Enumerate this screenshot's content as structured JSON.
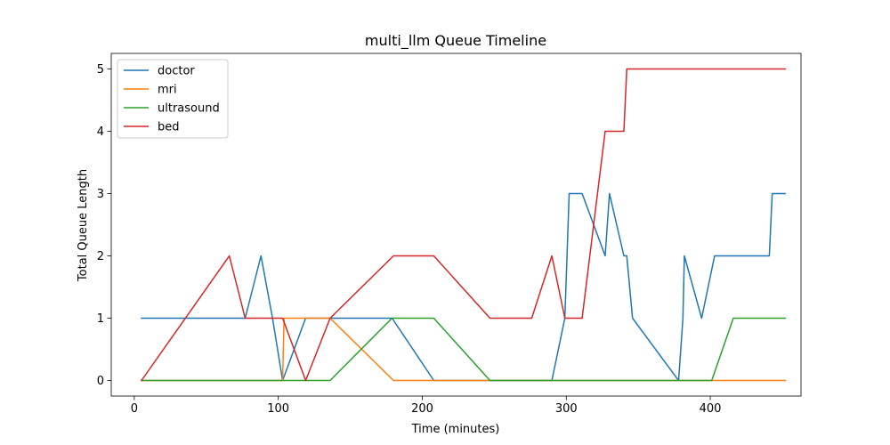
{
  "chart_data": {
    "type": "line",
    "title": "multi_llm Queue Timeline",
    "xlabel": "Time (minutes)",
    "ylabel": "Total Queue Length",
    "xlim": [
      -16,
      463
    ],
    "ylim": [
      -0.25,
      5.25
    ],
    "xticks": [
      0,
      100,
      200,
      300,
      400
    ],
    "yticks": [
      0,
      1,
      2,
      3,
      4,
      5
    ],
    "grid": false,
    "legend_position": "upper left",
    "series": [
      {
        "name": "doctor",
        "color": "#1f77b4",
        "points": [
          [
            5,
            1
          ],
          [
            66,
            1
          ],
          [
            77,
            1
          ],
          [
            88,
            2
          ],
          [
            96,
            1
          ],
          [
            103,
            0
          ],
          [
            119,
            1
          ],
          [
            136,
            1
          ],
          [
            179,
            1
          ],
          [
            208,
            0
          ],
          [
            247,
            0
          ],
          [
            290,
            0
          ],
          [
            299,
            1
          ],
          [
            302,
            3
          ],
          [
            311,
            3
          ],
          [
            327,
            2
          ],
          [
            330,
            3
          ],
          [
            340,
            2
          ],
          [
            342,
            2
          ],
          [
            346,
            1
          ],
          [
            378,
            0
          ],
          [
            381,
            1
          ],
          [
            382,
            2
          ],
          [
            394,
            1
          ],
          [
            403,
            2
          ],
          [
            441,
            2
          ],
          [
            443,
            3
          ],
          [
            452,
            3
          ]
        ]
      },
      {
        "name": "mri",
        "color": "#ff7f0e",
        "points": [
          [
            5,
            0
          ],
          [
            103,
            0
          ],
          [
            104,
            1
          ],
          [
            136,
            1
          ],
          [
            180,
            0
          ],
          [
            247,
            0
          ],
          [
            452,
            0
          ]
        ]
      },
      {
        "name": "ultrasound",
        "color": "#2ca02c",
        "points": [
          [
            5,
            0
          ],
          [
            136,
            0
          ],
          [
            179,
            1
          ],
          [
            208,
            1
          ],
          [
            247,
            0
          ],
          [
            401,
            0
          ],
          [
            416,
            1
          ],
          [
            452,
            1
          ]
        ]
      },
      {
        "name": "bed",
        "color": "#d62728",
        "points": [
          [
            5,
            0
          ],
          [
            66,
            2
          ],
          [
            77,
            1
          ],
          [
            103,
            1
          ],
          [
            119,
            0
          ],
          [
            136,
            1
          ],
          [
            180,
            2
          ],
          [
            208,
            2
          ],
          [
            247,
            1
          ],
          [
            276,
            1
          ],
          [
            290,
            2
          ],
          [
            299,
            1
          ],
          [
            311,
            1
          ],
          [
            327,
            4
          ],
          [
            340,
            4
          ],
          [
            342,
            5
          ],
          [
            452,
            5
          ]
        ]
      }
    ]
  }
}
